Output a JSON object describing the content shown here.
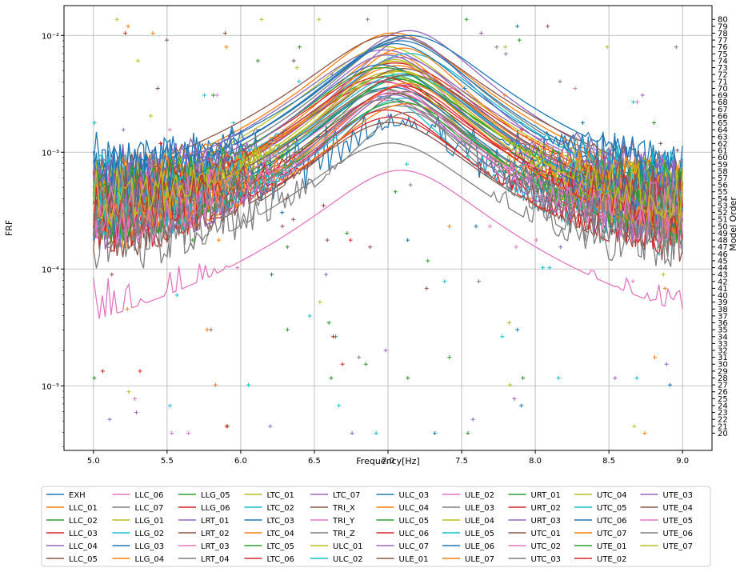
{
  "chart_data": {
    "type": "line",
    "title": "",
    "xlabel": "Frequency[Hz]",
    "ylabel": "FRF",
    "y2label": "Model Order",
    "xlim": [
      4.8,
      9.2
    ],
    "ylim": [
      2.8e-06,
      0.018
    ],
    "yscale": "log",
    "y2lim": [
      17.5,
      82
    ],
    "grid": true,
    "legend_placement": "bottom (10 columns, below plot)",
    "x_ticks": [
      "5.0",
      "5.5",
      "6.0",
      "6.5",
      "7.0",
      "7.5",
      "8.0",
      "8.5",
      "9.0"
    ],
    "y_ticks": [
      {
        "value": 1e-05,
        "label": "10⁻⁵"
      },
      {
        "value": 0.0001,
        "label": "10⁻⁴"
      },
      {
        "value": 0.001,
        "label": "10⁻³"
      },
      {
        "value": 0.01,
        "label": "10⁻²"
      }
    ],
    "y2_ticks": [
      20,
      21,
      22,
      23,
      24,
      25,
      26,
      27,
      28,
      29,
      30,
      31,
      32,
      33,
      34,
      35,
      36,
      37,
      38,
      39,
      40,
      41,
      42,
      43,
      44,
      45,
      46,
      47,
      48,
      49,
      50,
      51,
      52,
      53,
      54,
      55,
      56,
      57,
      58,
      59,
      60,
      61,
      62,
      63,
      64,
      65,
      66,
      67,
      68,
      69,
      70,
      71,
      72,
      73,
      74,
      75,
      76,
      77,
      78,
      79,
      80
    ],
    "palette": [
      "#1f77b4",
      "#ff7f0e",
      "#2ca02c",
      "#d62728",
      "#9467bd",
      "#8c564b",
      "#e377c2",
      "#7f7f7f",
      "#bcbd22",
      "#17becf"
    ],
    "series": [
      {
        "name": "EXH",
        "peak": 0.0017,
        "floor": 0.0006
      },
      {
        "name": "LLC_01",
        "peak": 0.0105,
        "floor": 0.00028
      },
      {
        "name": "LLC_02",
        "peak": 0.0045,
        "floor": 0.00022
      },
      {
        "name": "LLC_03",
        "peak": 0.002,
        "floor": 0.00018
      },
      {
        "name": "LLC_04",
        "peak": 0.011,
        "floor": 0.0004
      },
      {
        "name": "LLC_05",
        "peak": 0.01,
        "floor": 0.0003
      },
      {
        "name": "LLC_06",
        "peak": 0.006,
        "floor": 0.0002
      },
      {
        "name": "LLC_07",
        "peak": 0.0095,
        "floor": 0.00035
      },
      {
        "name": "LLG_01",
        "peak": 0.008,
        "floor": 0.0003
      },
      {
        "name": "LLG_02",
        "peak": 0.003,
        "floor": 0.00025
      },
      {
        "name": "LLG_03",
        "peak": 0.01,
        "floor": 0.0004
      },
      {
        "name": "LLG_04",
        "peak": 0.007,
        "floor": 0.0003
      },
      {
        "name": "LLG_05",
        "peak": 0.0042,
        "floor": 0.00022
      },
      {
        "name": "LLG_06",
        "peak": 0.0058,
        "floor": 0.00025
      },
      {
        "name": "LRT_01",
        "peak": 0.0095,
        "floor": 0.00035
      },
      {
        "name": "LRT_02",
        "peak": 0.0033,
        "floor": 0.0002
      },
      {
        "name": "LRT_03",
        "peak": 0.0028,
        "floor": 0.0002
      },
      {
        "name": "LRT_04",
        "peak": 0.0025,
        "floor": 0.00018
      },
      {
        "name": "LTC_01",
        "peak": 0.006,
        "floor": 0.0003
      },
      {
        "name": "LTC_02",
        "peak": 0.0045,
        "floor": 0.00025
      },
      {
        "name": "LTC_03",
        "peak": 0.009,
        "floor": 0.0004
      },
      {
        "name": "LTC_04",
        "peak": 0.0026,
        "floor": 0.0002
      },
      {
        "name": "LTC_05",
        "peak": 0.0035,
        "floor": 0.00022
      },
      {
        "name": "LTC_06",
        "peak": 0.004,
        "floor": 0.00025
      },
      {
        "name": "LTC_07",
        "peak": 0.0075,
        "floor": 0.0003
      },
      {
        "name": "TRI_X",
        "peak": 0.0018,
        "floor": 0.00015
      },
      {
        "name": "TRI_Y",
        "peak": 0.0007,
        "floor": 3e-05
      },
      {
        "name": "TRI_Z",
        "peak": 0.0012,
        "floor": 0.00012
      },
      {
        "name": "ULC_01",
        "peak": 0.005,
        "floor": 0.0003
      },
      {
        "name": "ULC_02",
        "peak": 0.007,
        "floor": 0.00035
      },
      {
        "name": "ULC_03",
        "peak": 0.0085,
        "floor": 0.0004
      },
      {
        "name": "ULC_04",
        "peak": 0.0055,
        "floor": 0.0003
      },
      {
        "name": "ULC_05",
        "peak": 0.0043,
        "floor": 0.00022
      },
      {
        "name": "ULC_06",
        "peak": 0.0023,
        "floor": 0.0002
      },
      {
        "name": "ULC_07",
        "peak": 0.0065,
        "floor": 0.0003
      },
      {
        "name": "ULE_01",
        "peak": 0.0032,
        "floor": 0.00022
      },
      {
        "name": "ULE_02",
        "peak": 0.0038,
        "floor": 0.00025
      },
      {
        "name": "ULE_03",
        "peak": 0.0022,
        "floor": 0.00018
      },
      {
        "name": "ULE_04",
        "peak": 0.0048,
        "floor": 0.00028
      },
      {
        "name": "ULE_05",
        "peak": 0.0029,
        "floor": 0.0002
      },
      {
        "name": "ULE_06",
        "peak": 0.0036,
        "floor": 0.00022
      },
      {
        "name": "ULE_07",
        "peak": 0.0078,
        "floor": 0.0003
      },
      {
        "name": "URT_01",
        "peak": 0.0027,
        "floor": 0.0002
      },
      {
        "name": "URT_02",
        "peak": 0.0044,
        "floor": 0.00025
      },
      {
        "name": "URT_03",
        "peak": 0.0031,
        "floor": 0.00022
      },
      {
        "name": "UTC_01",
        "peak": 0.0052,
        "floor": 0.00028
      },
      {
        "name": "UTC_02",
        "peak": 0.0041,
        "floor": 0.00024
      },
      {
        "name": "UTC_03",
        "peak": 0.0034,
        "floor": 0.00022
      },
      {
        "name": "UTC_04",
        "peak": 0.0062,
        "floor": 0.0003
      },
      {
        "name": "UTC_05",
        "peak": 0.0047,
        "floor": 0.00026
      },
      {
        "name": "UTC_06",
        "peak": 0.0056,
        "floor": 0.0003
      },
      {
        "name": "UTC_07",
        "peak": 0.0039,
        "floor": 0.00024
      },
      {
        "name": "UTE_01",
        "peak": 0.0053,
        "floor": 0.00028
      },
      {
        "name": "UTE_02",
        "peak": 0.0037,
        "floor": 0.00022
      },
      {
        "name": "UTE_03",
        "peak": 0.0068,
        "floor": 0.00032
      },
      {
        "name": "UTE_04",
        "peak": 0.0046,
        "floor": 0.00026
      },
      {
        "name": "UTE_05",
        "peak": 0.0033,
        "floor": 0.00022
      },
      {
        "name": "UTE_06",
        "peak": 0.0029,
        "floor": 0.0002
      },
      {
        "name": "UTE_07",
        "peak": 0.0049,
        "floor": 0.00027
      }
    ]
  }
}
